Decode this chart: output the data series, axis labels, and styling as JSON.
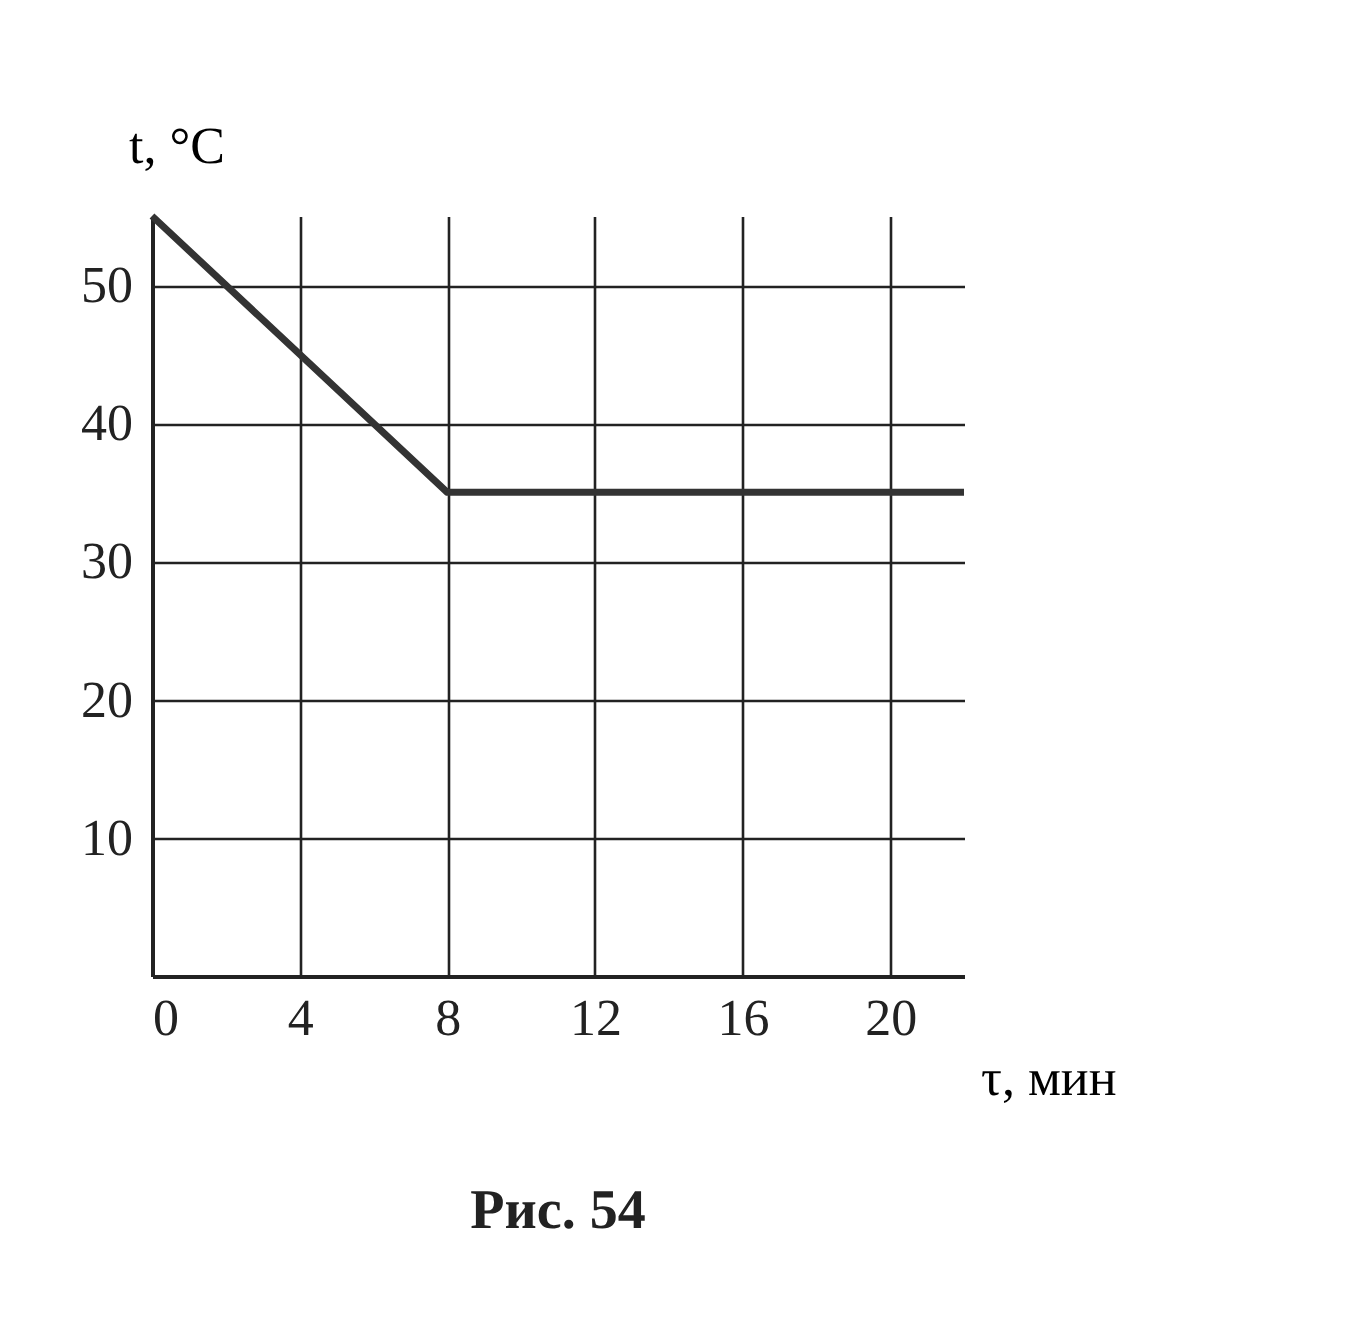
{
  "chart_data": {
    "type": "line",
    "xlabel": "τ, мин",
    "ylabel": "t, °C",
    "annotations": [
      "Рис. 54"
    ],
    "x": [
      0,
      8,
      22
    ],
    "series": [
      {
        "color": "#333333",
        "values": [
          55,
          35,
          35
        ]
      }
    ],
    "xlim": [
      0,
      22
    ],
    "ylim": [
      0,
      55
    ],
    "xticks": [
      0,
      4,
      8,
      12,
      16,
      20
    ],
    "yticks": [
      10,
      20,
      30,
      40,
      50
    ],
    "grid": true,
    "marker": "none",
    "line_style": "solid"
  }
}
